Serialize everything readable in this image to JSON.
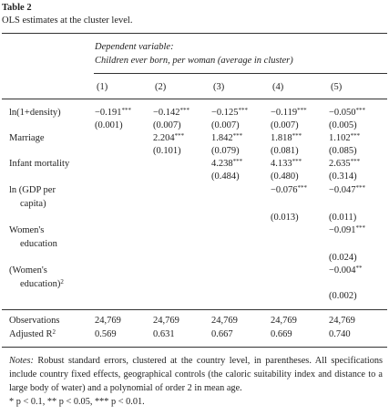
{
  "title": "Table 2",
  "caption": "OLS estimates at the cluster level.",
  "header": {
    "dep_label": "Dependent variable:",
    "dep_name": "Children ever born, per woman (average in cluster)",
    "columns": [
      "(1)",
      "(2)",
      "(3)",
      "(4)",
      "(5)"
    ]
  },
  "rows": [
    {
      "label": [
        "ln(1+density)"
      ],
      "coefs": [
        "−0.191",
        "−0.142",
        "−0.125",
        "−0.119",
        "−0.050"
      ],
      "stars": [
        "***",
        "***",
        "***",
        "***",
        "***"
      ],
      "se": [
        "(0.001)",
        "(0.007)",
        "(0.007)",
        "(0.007)",
        "(0.005)"
      ]
    },
    {
      "label": [
        "Marriage"
      ],
      "coefs": [
        null,
        "2.204",
        "1.842",
        "1.818",
        "1.102"
      ],
      "stars": [
        null,
        "***",
        "***",
        "***",
        "***"
      ],
      "se": [
        null,
        "(0.101)",
        "(0.079)",
        "(0.081)",
        "(0.085)"
      ]
    },
    {
      "label": [
        "Infant mortality"
      ],
      "coefs": [
        null,
        null,
        "4.238",
        "4.133",
        "2.635"
      ],
      "stars": [
        null,
        null,
        "***",
        "***",
        "***"
      ],
      "se": [
        null,
        null,
        "(0.484)",
        "(0.480)",
        "(0.314)"
      ]
    },
    {
      "label": [
        "ln (GDP per",
        "capita)"
      ],
      "coefs": [
        null,
        null,
        null,
        "−0.076",
        "−0.047"
      ],
      "stars": [
        null,
        null,
        null,
        "***",
        "***"
      ],
      "se": [
        null,
        null,
        null,
        "(0.013)",
        "(0.011)"
      ]
    },
    {
      "label": [
        "Women's",
        "education"
      ],
      "coefs": [
        null,
        null,
        null,
        null,
        "−0.091"
      ],
      "stars": [
        null,
        null,
        null,
        null,
        "***"
      ],
      "se": [
        null,
        null,
        null,
        null,
        "(0.024)"
      ]
    },
    {
      "label": [
        "(Women's",
        "education)"
      ],
      "label_sup": "2",
      "coefs": [
        null,
        null,
        null,
        null,
        "−0.004"
      ],
      "stars": [
        null,
        null,
        null,
        null,
        "**"
      ],
      "se": [
        null,
        null,
        null,
        null,
        "(0.002)"
      ]
    }
  ],
  "stats": [
    {
      "label": "Observations",
      "values": [
        "24,769",
        "24,769",
        "24,769",
        "24,769",
        "24,769"
      ]
    },
    {
      "label": "Adjusted R",
      "label_sup": "2",
      "values": [
        "0.569",
        "0.631",
        "0.667",
        "0.669",
        "0.740"
      ]
    }
  ],
  "notes": {
    "lead": "Notes:",
    "text": "Robust standard errors, clustered at the country level, in parentheses. All specifications include country fixed effects, geographical controls (the caloric suitability index and distance to a large body of water) and a polynomial of order 2 in mean age.",
    "significance": "* p < 0.1, ** p < 0.05, *** p < 0.01."
  }
}
